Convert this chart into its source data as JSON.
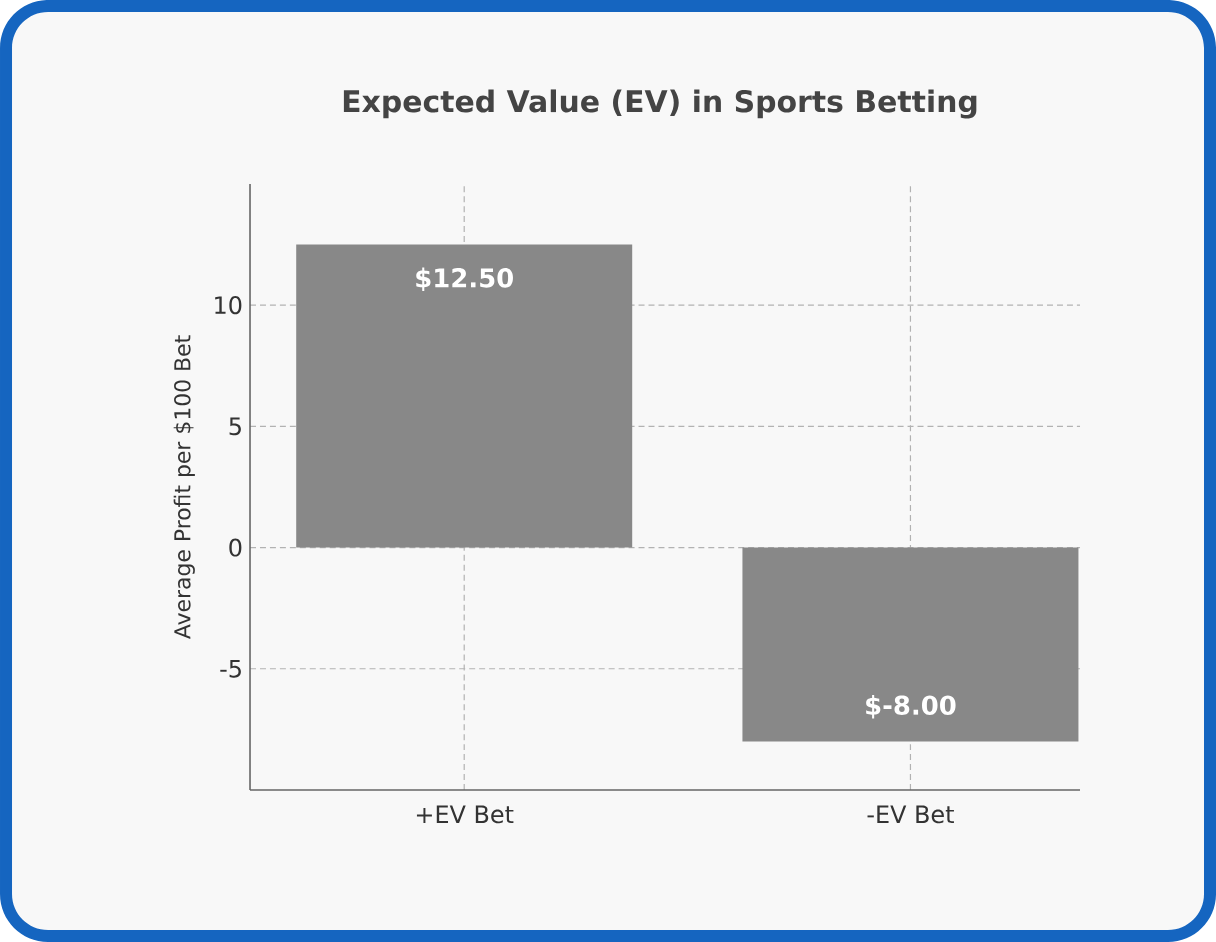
{
  "chart_data": {
    "type": "bar",
    "title": "Expected Value (EV) in Sports Betting",
    "ylabel": "Average Profit per $100 Bet",
    "categories": [
      "+EV Bet",
      "-EV Bet"
    ],
    "values": [
      12.5,
      -8.0
    ],
    "value_labels": [
      "$12.50",
      "$-8.00"
    ],
    "color": "#888888",
    "ylim": [
      -10,
      15
    ],
    "yticks": [
      -5,
      0,
      5,
      10
    ],
    "grid": true
  }
}
